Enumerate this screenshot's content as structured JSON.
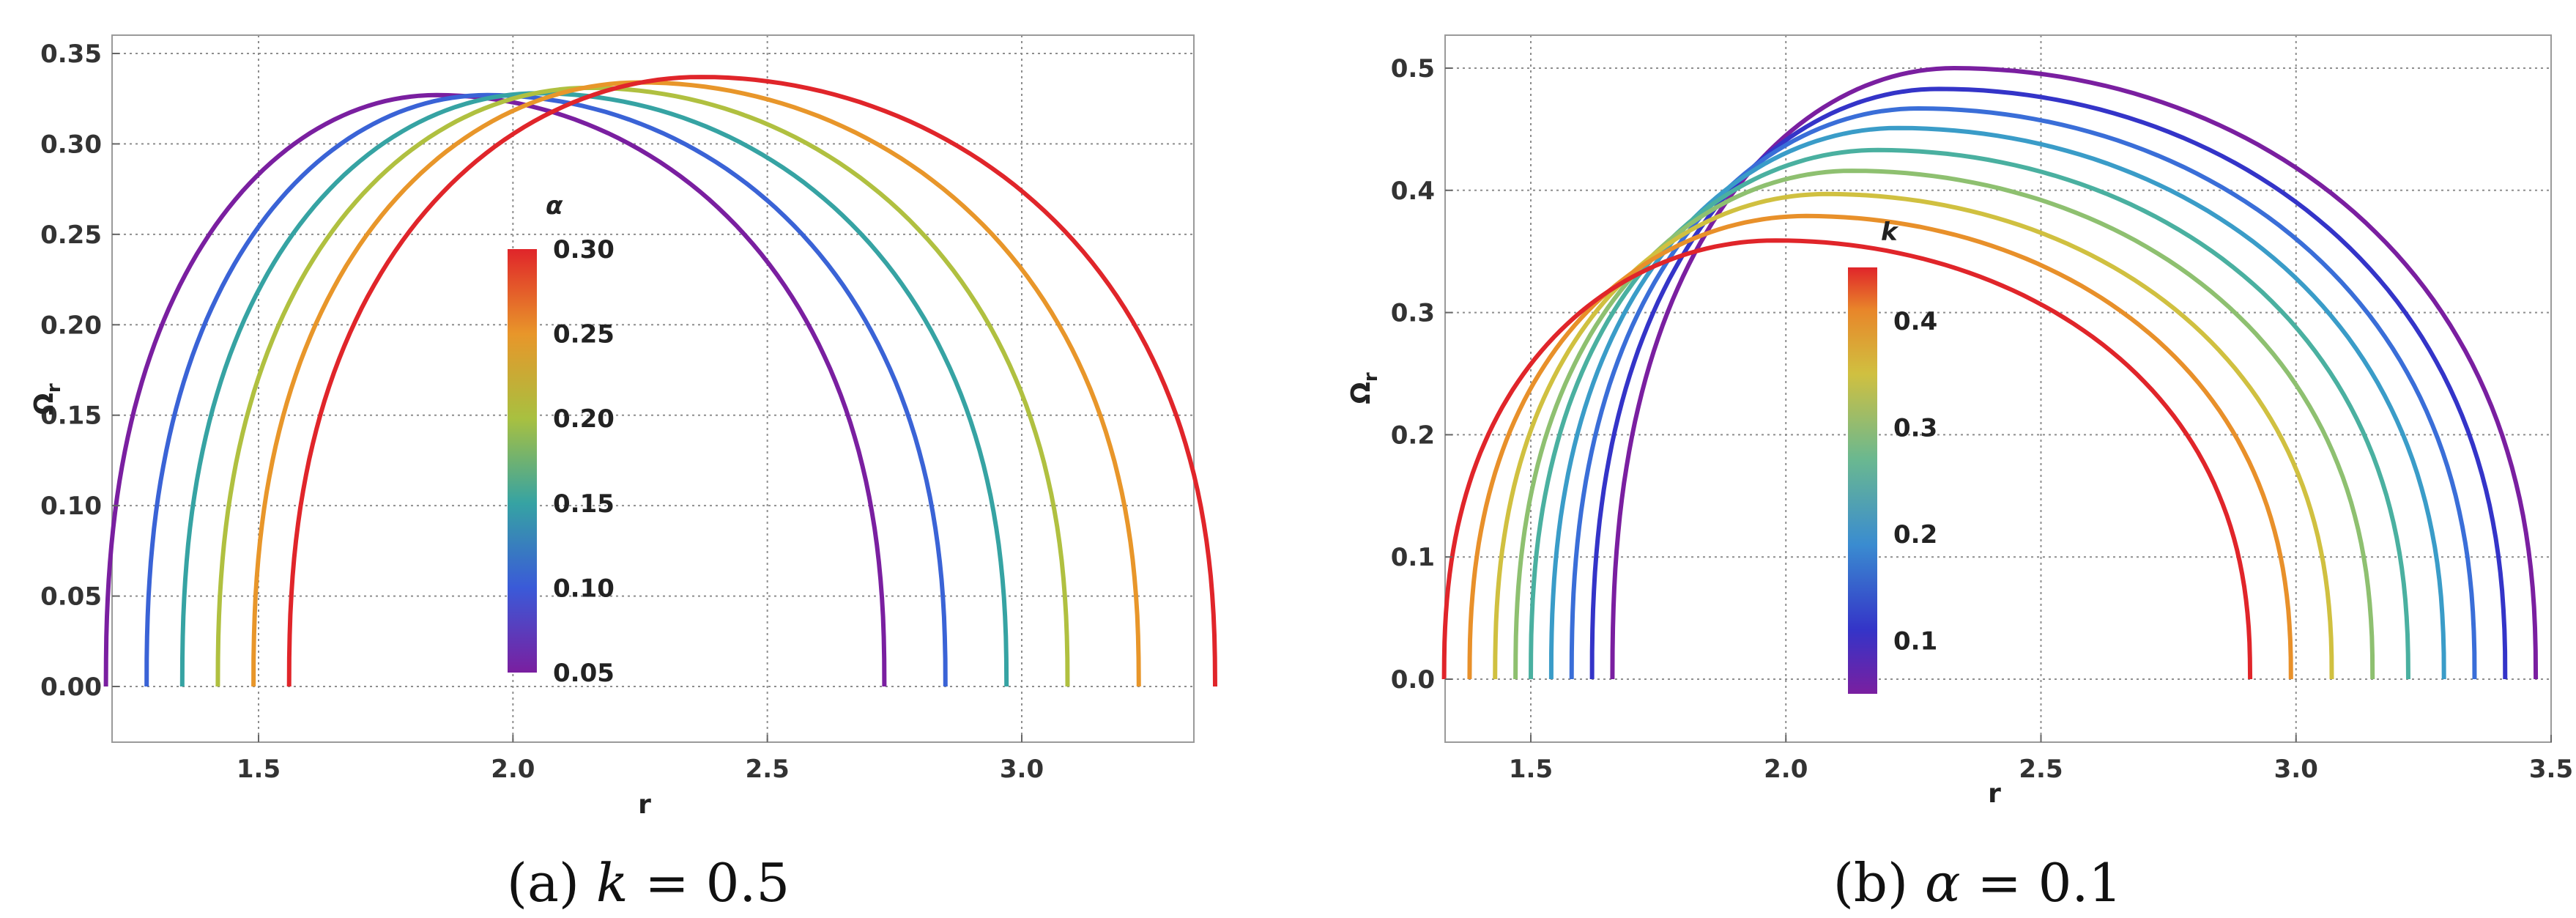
{
  "chart_data": [
    {
      "type": "line",
      "caption": "(a) k = 0.5",
      "xlabel": "r",
      "ylabel": "Ω_r",
      "xlim": [
        1.2,
        3.4
      ],
      "ylim": [
        0.0,
        0.35
      ],
      "x_ticks": [
        "1.5",
        "2.0",
        "2.5",
        "3.0"
      ],
      "y_ticks": [
        "0.00",
        "0.05",
        "0.10",
        "0.15",
        "0.20",
        "0.25",
        "0.30",
        "0.35"
      ],
      "grid": true,
      "colorbar": {
        "title": "α",
        "range": [
          0.05,
          0.3
        ],
        "ticks": [
          "0.05",
          "0.10",
          "0.15",
          "0.20",
          "0.25",
          "0.30"
        ]
      },
      "series": [
        {
          "name": "α = 0.05",
          "color": "#7a1fa0",
          "r_min": 1.2,
          "r_max": 2.73,
          "r_peak": 1.85,
          "omega_peak": 0.327
        },
        {
          "name": "α = 0.10",
          "color": "#3a63d6",
          "r_min": 1.28,
          "r_max": 2.85,
          "r_peak": 1.95,
          "omega_peak": 0.327
        },
        {
          "name": "α = 0.15",
          "color": "#36a3a3",
          "r_min": 1.35,
          "r_max": 2.97,
          "r_peak": 2.05,
          "omega_peak": 0.328
        },
        {
          "name": "α = 0.20",
          "color": "#b0c040",
          "r_min": 1.42,
          "r_max": 3.09,
          "r_peak": 2.15,
          "omega_peak": 0.331
        },
        {
          "name": "α = 0.25",
          "color": "#e8962a",
          "r_min": 1.49,
          "r_max": 3.23,
          "r_peak": 2.25,
          "omega_peak": 0.334
        },
        {
          "name": "α = 0.30",
          "color": "#e0252a",
          "r_min": 1.56,
          "r_max": 3.38,
          "r_peak": 2.37,
          "omega_peak": 0.337
        }
      ]
    },
    {
      "type": "line",
      "caption": "(b) α = 0.1",
      "xlabel": "r",
      "ylabel": "Ω_r",
      "xlim": [
        1.3,
        3.5
      ],
      "ylim": [
        0.0,
        0.5
      ],
      "x_ticks": [
        "1.5",
        "2.0",
        "2.5",
        "3.0",
        "3.5"
      ],
      "y_ticks": [
        "0.0",
        "0.1",
        "0.2",
        "0.3",
        "0.4",
        "0.5"
      ],
      "grid": true,
      "colorbar": {
        "title": "k",
        "range": [
          0.05,
          0.45
        ],
        "ticks": [
          "0.1",
          "0.2",
          "0.3",
          "0.4"
        ]
      },
      "series": [
        {
          "name": "k = 0.05",
          "color": "#7a1fa0",
          "r_min": 1.66,
          "r_max": 3.47,
          "r_peak": 2.33,
          "omega_peak": 0.5
        },
        {
          "name": "k = 0.10",
          "color": "#3434c8",
          "r_min": 1.62,
          "r_max": 3.41,
          "r_peak": 2.3,
          "omega_peak": 0.483
        },
        {
          "name": "k = 0.15",
          "color": "#3a6ed8",
          "r_min": 1.58,
          "r_max": 3.35,
          "r_peak": 2.26,
          "omega_peak": 0.467
        },
        {
          "name": "k = 0.20",
          "color": "#3a9cc8",
          "r_min": 1.54,
          "r_max": 3.29,
          "r_peak": 2.22,
          "omega_peak": 0.451
        },
        {
          "name": "k = 0.25",
          "color": "#4ab0a0",
          "r_min": 1.5,
          "r_max": 3.22,
          "r_peak": 2.18,
          "omega_peak": 0.433
        },
        {
          "name": "k = 0.30",
          "color": "#8ec070",
          "r_min": 1.47,
          "r_max": 3.15,
          "r_peak": 2.13,
          "omega_peak": 0.416
        },
        {
          "name": "k = 0.35",
          "color": "#d0c040",
          "r_min": 1.43,
          "r_max": 3.07,
          "r_peak": 2.08,
          "omega_peak": 0.397
        },
        {
          "name": "k = 0.40",
          "color": "#e8902a",
          "r_min": 1.38,
          "r_max": 2.99,
          "r_peak": 2.04,
          "omega_peak": 0.379
        },
        {
          "name": "k = 0.45",
          "color": "#e0252a",
          "r_min": 1.33,
          "r_max": 2.91,
          "r_peak": 1.98,
          "omega_peak": 0.359
        }
      ]
    }
  ]
}
